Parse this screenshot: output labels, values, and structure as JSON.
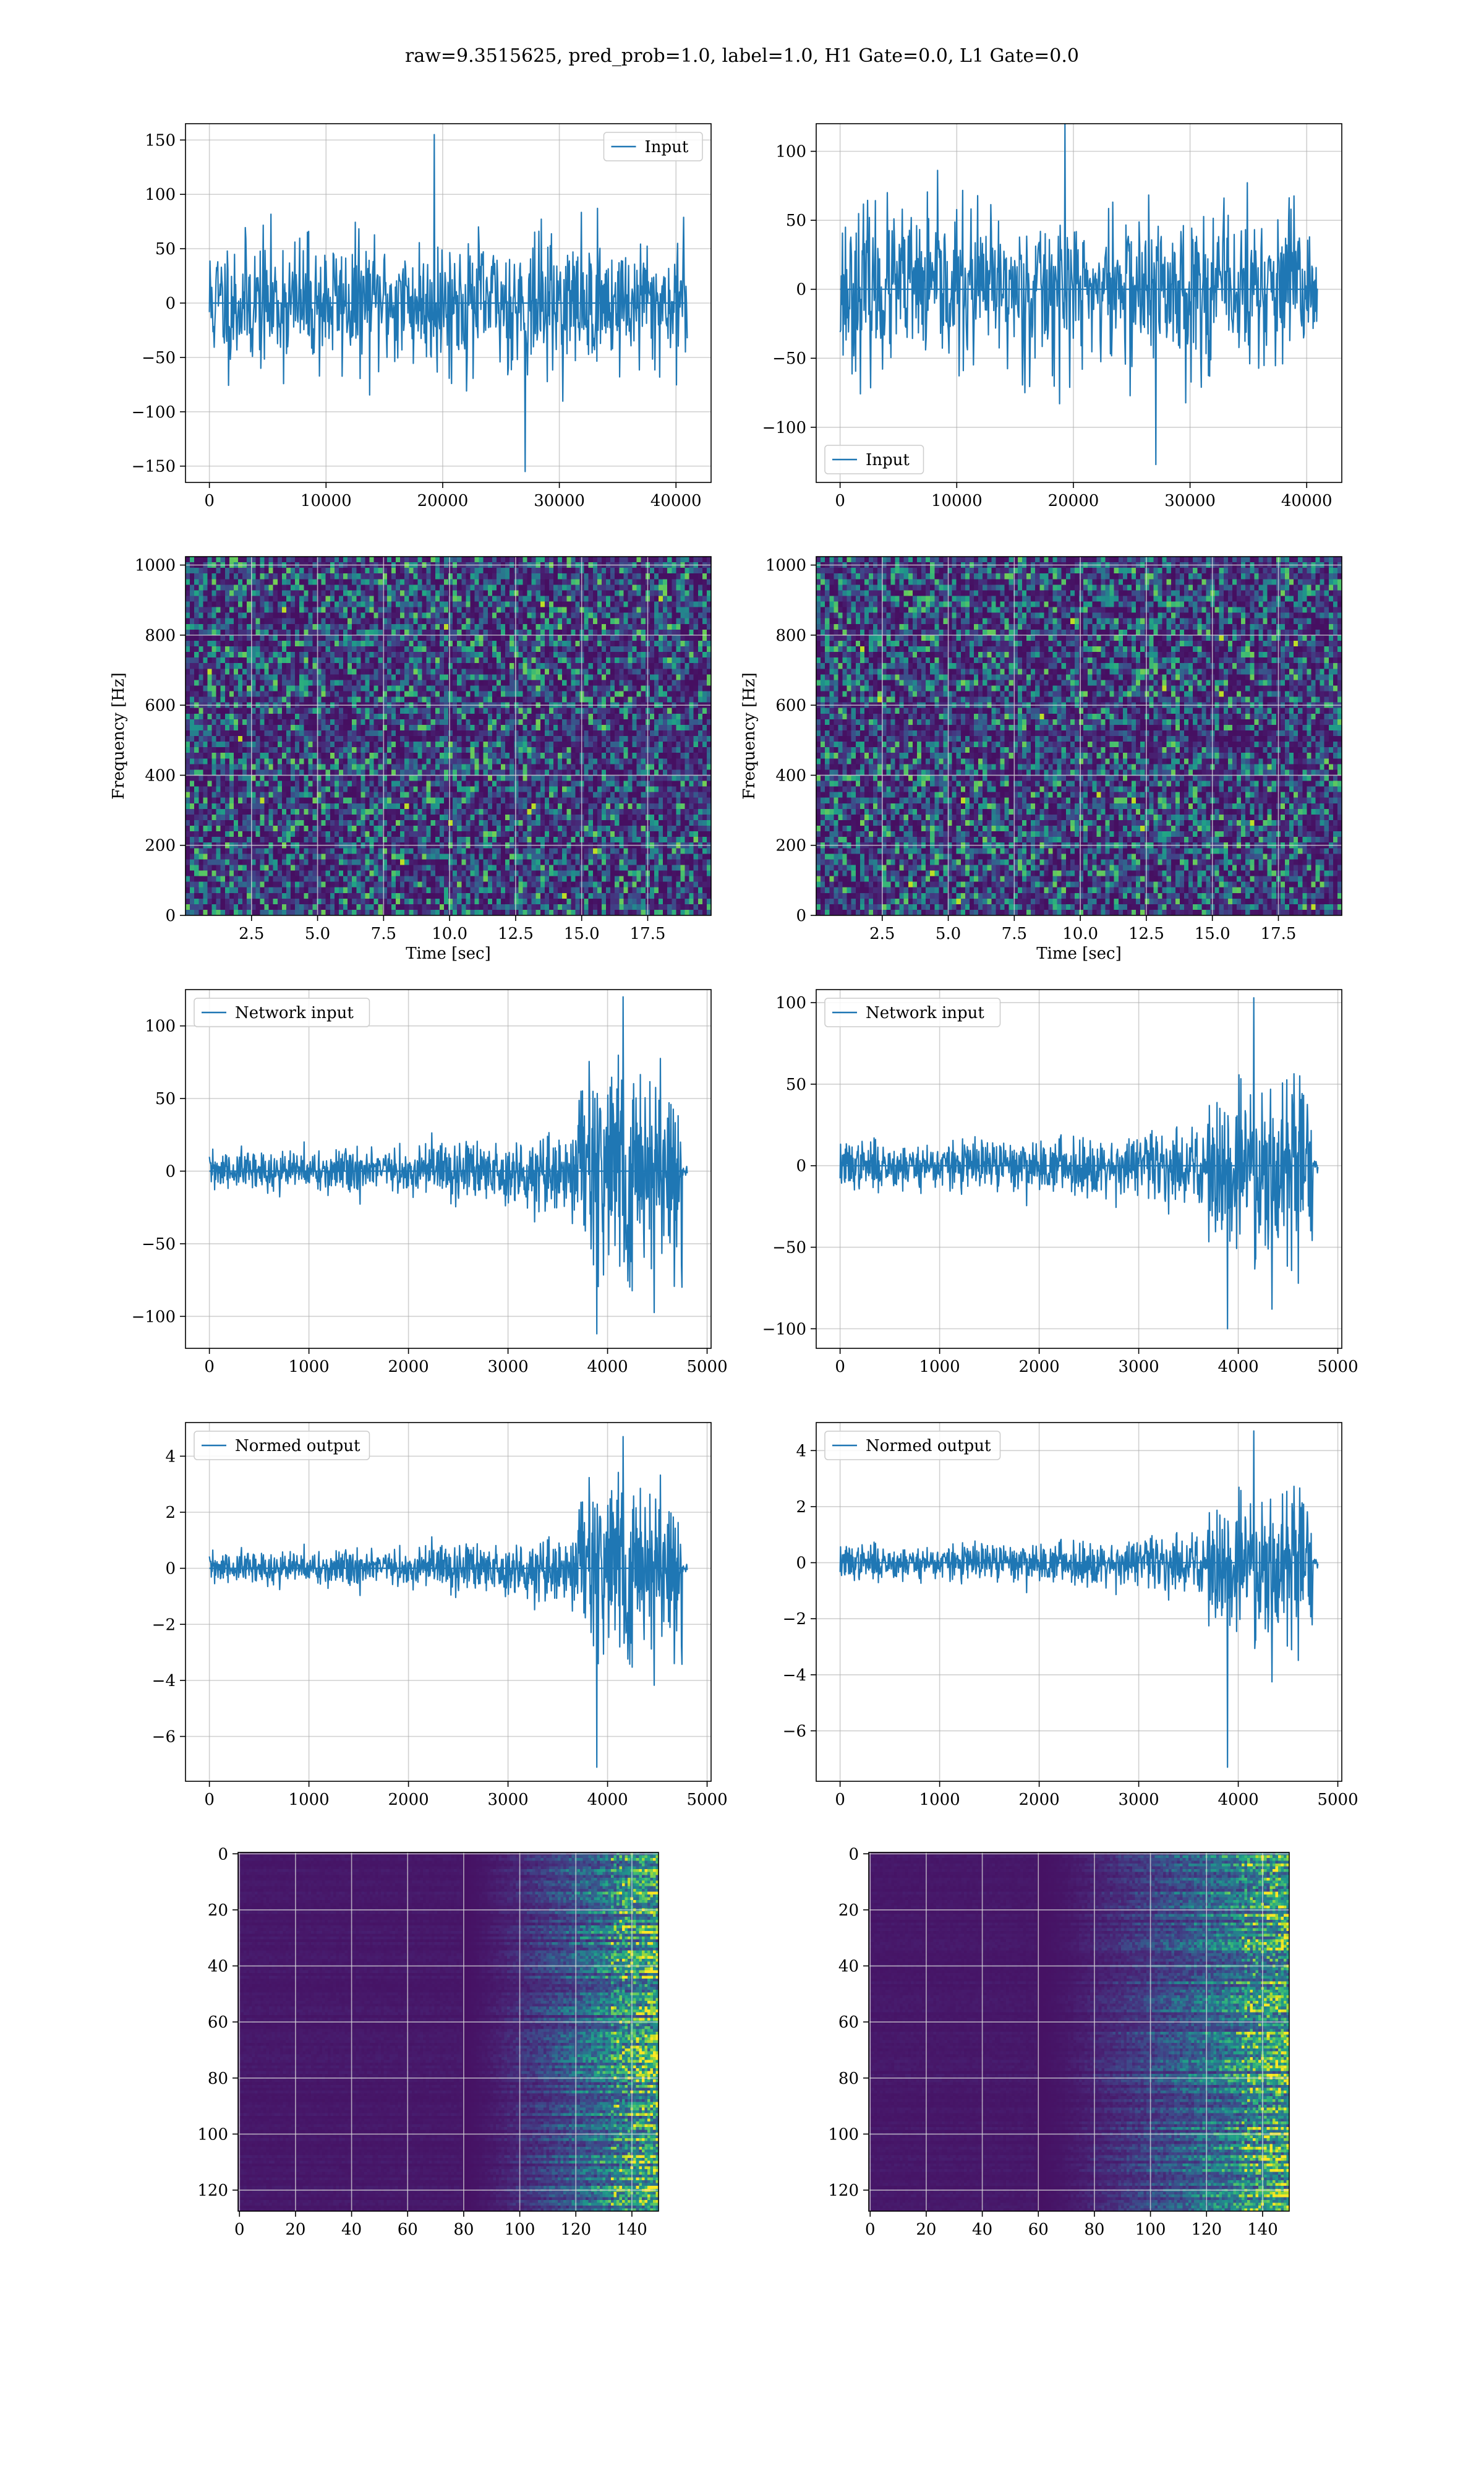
{
  "figure": {
    "suptitle": "raw=9.3515625, pred_prob=1.0, label=1.0, H1 Gate=0.0, L1 Gate=0.0",
    "accent_color": "#1f77b4",
    "grid_color": "#b0b0b0"
  },
  "chart_data": [
    {
      "id": "input_h1",
      "type": "line",
      "legend": "Input",
      "legend_loc": "upper right",
      "grid": true,
      "xlim": [
        -2048,
        43008
      ],
      "ylim": [
        -165,
        165
      ],
      "xticks": [
        0,
        10000,
        20000,
        30000,
        40000
      ],
      "yticks": [
        -150,
        -100,
        -50,
        0,
        50,
        100,
        150
      ],
      "xlabel": "",
      "ylabel": "",
      "signal": {
        "x_start": 0,
        "x_end": 40960,
        "stdev": 30,
        "max": 155,
        "min": -155,
        "points": 800,
        "seed": 11
      }
    },
    {
      "id": "input_l1",
      "type": "line",
      "legend": "Input",
      "legend_loc": "lower left",
      "grid": true,
      "xlim": [
        -2048,
        43008
      ],
      "ylim": [
        -140,
        120
      ],
      "xticks": [
        0,
        10000,
        20000,
        30000,
        40000
      ],
      "yticks": [
        -100,
        -50,
        0,
        50,
        100
      ],
      "xlabel": "",
      "ylabel": "",
      "signal": {
        "x_start": 0,
        "x_end": 40960,
        "stdev": 28,
        "max": 122,
        "min": -127,
        "points": 800,
        "seed": 23
      }
    },
    {
      "id": "spec_h1",
      "type": "heatmap",
      "grid": true,
      "xlim": [
        0,
        19.9
      ],
      "ylim": [
        0,
        1024
      ],
      "xticks": [
        2.5,
        5.0,
        7.5,
        10.0,
        12.5,
        15.0,
        17.5
      ],
      "yticks": [
        0,
        200,
        400,
        600,
        800,
        1000
      ],
      "xlabel": "Time [sec]",
      "ylabel": "Frequency [Hz]",
      "cells": {
        "cols": 120,
        "rows": 64,
        "seed": 5
      }
    },
    {
      "id": "spec_l1",
      "type": "heatmap",
      "grid": true,
      "xlim": [
        0,
        19.9
      ],
      "ylim": [
        0,
        1024
      ],
      "xticks": [
        2.5,
        5.0,
        7.5,
        10.0,
        12.5,
        15.0,
        17.5
      ],
      "yticks": [
        0,
        200,
        400,
        600,
        800,
        1000
      ],
      "xlabel": "Time [sec]",
      "ylabel": "Frequency [Hz]",
      "cells": {
        "cols": 120,
        "rows": 64,
        "seed": 9
      }
    },
    {
      "id": "net_h1",
      "type": "line",
      "legend": "Network input",
      "legend_loc": "upper left",
      "grid": true,
      "xlim": [
        -240,
        5040
      ],
      "ylim": [
        -122,
        125
      ],
      "xticks": [
        0,
        1000,
        2000,
        3000,
        4000,
        5000
      ],
      "yticks": [
        -100,
        -50,
        0,
        50,
        100
      ],
      "xlabel": "",
      "ylabel": "",
      "signal": {
        "x_start": 0,
        "x_end": 4800,
        "burst_start": 3700,
        "burst_end": 4750,
        "base": 7,
        "ramp": 13,
        "burst": 35,
        "max": 120,
        "min": -112,
        "points": 1000,
        "seed": 31
      }
    },
    {
      "id": "net_l1",
      "type": "line",
      "legend": "Network input",
      "legend_loc": "upper left",
      "grid": true,
      "xlim": [
        -240,
        5040
      ],
      "ylim": [
        -112,
        108
      ],
      "xticks": [
        0,
        1000,
        2000,
        3000,
        4000,
        5000
      ],
      "yticks": [
        -100,
        -50,
        0,
        50,
        100
      ],
      "xlabel": "",
      "ylabel": "",
      "signal": {
        "x_start": 0,
        "x_end": 4800,
        "burst_start": 3700,
        "burst_end": 4750,
        "base": 7,
        "ramp": 11,
        "burst": 30,
        "max": 103,
        "min": -100,
        "points": 1000,
        "seed": 37
      }
    },
    {
      "id": "norm_h1",
      "type": "line",
      "legend": "Normed output",
      "legend_loc": "upper left",
      "grid": true,
      "xlim": [
        -240,
        5040
      ],
      "ylim": [
        -7.6,
        5.2
      ],
      "xticks": [
        0,
        1000,
        2000,
        3000,
        4000,
        5000
      ],
      "yticks": [
        -6,
        -4,
        -2,
        0,
        2,
        4
      ],
      "xlabel": "",
      "ylabel": "",
      "signal": {
        "x_start": 0,
        "x_end": 4800,
        "burst_start": 3700,
        "burst_end": 4750,
        "base": 0.3,
        "ramp": 0.55,
        "burst": 1.5,
        "max": 4.7,
        "min": -7.1,
        "points": 1000,
        "seed": 31
      }
    },
    {
      "id": "norm_l1",
      "type": "line",
      "legend": "Normed output",
      "legend_loc": "upper left",
      "grid": true,
      "xlim": [
        -240,
        5040
      ],
      "ylim": [
        -7.8,
        5.0
      ],
      "xticks": [
        0,
        1000,
        2000,
        3000,
        4000,
        5000
      ],
      "yticks": [
        -6,
        -4,
        -2,
        0,
        2,
        4
      ],
      "xlabel": "",
      "ylabel": "",
      "signal": {
        "x_start": 0,
        "x_end": 4800,
        "burst_start": 3700,
        "burst_end": 4750,
        "base": 0.3,
        "ramp": 0.5,
        "burst": 1.45,
        "max": 4.7,
        "min": -7.3,
        "points": 1000,
        "seed": 37
      }
    },
    {
      "id": "img_h1",
      "type": "heatmap",
      "grid": true,
      "origin": "upper",
      "xlim": [
        -0.5,
        149.5
      ],
      "ylim": [
        127.5,
        -0.5
      ],
      "xticks": [
        0,
        20,
        40,
        60,
        80,
        100,
        120,
        140
      ],
      "yticks": [
        0,
        20,
        40,
        60,
        80,
        100,
        120
      ],
      "xlabel": "",
      "ylabel": "",
      "cells": {
        "cols": 150,
        "rows": 128,
        "onset": 100,
        "seed": 13
      }
    },
    {
      "id": "img_l1",
      "type": "heatmap",
      "grid": true,
      "origin": "upper",
      "xlim": [
        -0.5,
        149.5
      ],
      "ylim": [
        127.5,
        -0.5
      ],
      "xticks": [
        0,
        20,
        40,
        60,
        80,
        100,
        120,
        140
      ],
      "yticks": [
        0,
        20,
        40,
        60,
        80,
        100,
        120
      ],
      "xlabel": "",
      "ylabel": "",
      "cells": {
        "cols": 150,
        "rows": 128,
        "onset": 80,
        "seed": 17
      }
    }
  ]
}
